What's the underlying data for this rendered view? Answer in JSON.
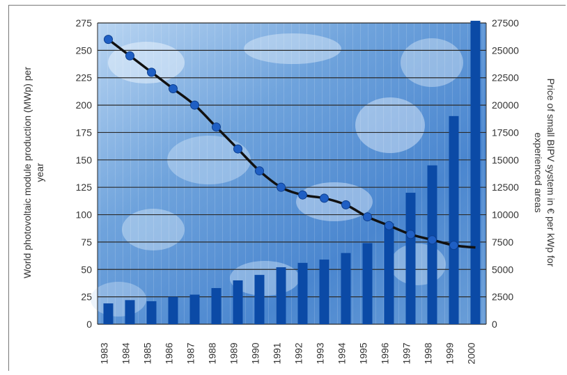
{
  "chart_data": {
    "type": "bar",
    "title": "",
    "categories": [
      "1983",
      "1984",
      "1985",
      "1986",
      "1987",
      "1988",
      "1989",
      "1990",
      "1991",
      "1992",
      "1993",
      "1994",
      "1995",
      "1996",
      "1997",
      "1998",
      "1999",
      "2000"
    ],
    "series": [
      {
        "kind": "bar",
        "axis": "left",
        "color": "#0b4aa6",
        "values": [
          19,
          22,
          21,
          25,
          27,
          33,
          40,
          45,
          52,
          56,
          59,
          65,
          74,
          92,
          120,
          145,
          190,
          277
        ]
      },
      {
        "kind": "line",
        "axis": "right",
        "color": "#111111",
        "marker_color": "#1f5fc4",
        "values": [
          26000,
          24500,
          23000,
          21500,
          20000,
          18000,
          16000,
          14000,
          12500,
          11800,
          11500,
          10900,
          9800,
          9000,
          8200,
          7700,
          7200,
          7000
        ]
      }
    ],
    "ylabel_left": [
      "World photovoltaic module production (MWp) per",
      "year"
    ],
    "ylabel_right": [
      "Price of small BIPV system in € per kWp for",
      "experienced areas"
    ],
    "ylim_left": [
      0,
      275
    ],
    "yticks_left": [
      0,
      25,
      50,
      75,
      100,
      125,
      150,
      175,
      200,
      225,
      250,
      275
    ],
    "ylim_right": [
      0,
      27500
    ],
    "yticks_right": [
      0,
      2500,
      5000,
      7500,
      10000,
      12500,
      15000,
      17500,
      20000,
      22500,
      25000,
      27500
    ],
    "grid": true,
    "background": "photovoltaic panel photograph (blue)"
  },
  "colors": {
    "bar": "#0b4aa6",
    "line": "#111111",
    "marker": "#1f5fc4",
    "background_blue": "#4f8fd6"
  }
}
